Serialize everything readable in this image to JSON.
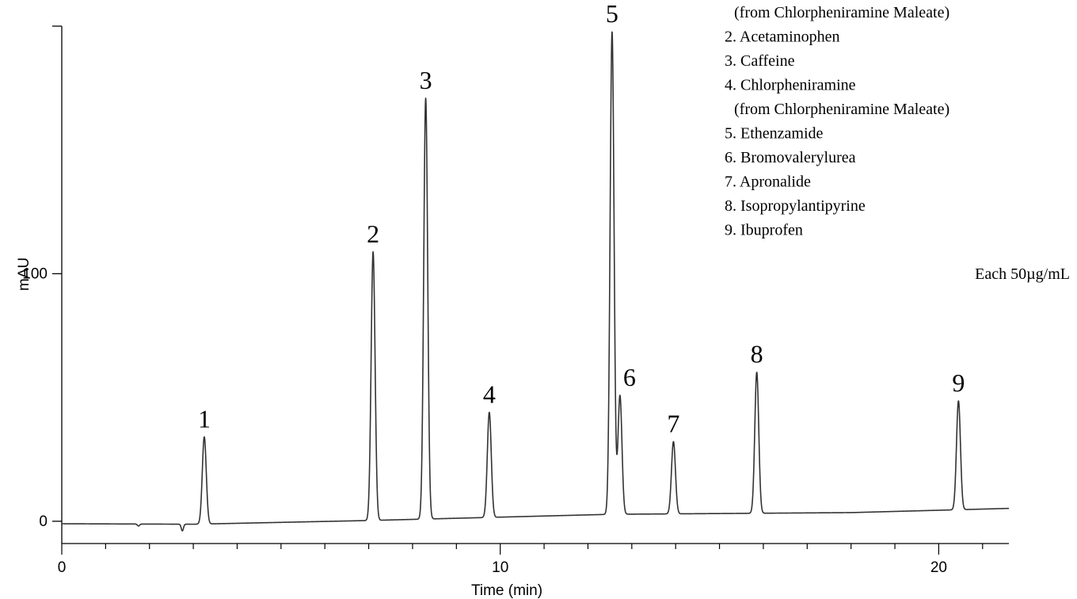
{
  "chart_data": {
    "type": "line",
    "title": "",
    "xlabel": "Time (min)",
    "ylabel": "mAU",
    "xlim": [
      0,
      21.6
    ],
    "ylim": [
      -9,
      200
    ],
    "x_ticks": [
      0,
      10,
      20
    ],
    "y_ticks": [
      0,
      100
    ],
    "x_tick_labels": [
      "0",
      "10",
      "20"
    ],
    "y_tick_labels": [
      "0",
      "100"
    ],
    "x_minor_step": 1,
    "grid": false,
    "baseline": [
      [
        0,
        -1
      ],
      [
        3,
        -1.2
      ],
      [
        7,
        0.3
      ],
      [
        12.5,
        2.8
      ],
      [
        18,
        3.5
      ],
      [
        21.6,
        5.2
      ]
    ],
    "disturbances": [
      {
        "time": 1.75,
        "depth": -0.8
      },
      {
        "time": 2.75,
        "depth": -2.7
      }
    ],
    "series": [
      {
        "values": [
          {
            "id": "1",
            "time": 3.25,
            "height": 35.2
          },
          {
            "id": "2",
            "time": 7.1,
            "height": 108.5
          },
          {
            "id": "3",
            "time": 8.3,
            "height": 170
          },
          {
            "id": "4",
            "time": 9.75,
            "height": 42.5
          },
          {
            "id": "5",
            "time": 12.55,
            "height": 195
          },
          {
            "id": "6",
            "time": 12.73,
            "height": 48
          },
          {
            "id": "7",
            "time": 13.95,
            "height": 29.2
          },
          {
            "id": "8",
            "time": 15.85,
            "height": 57
          },
          {
            "id": "9",
            "time": 20.45,
            "height": 44
          }
        ]
      }
    ],
    "peak_labels": [
      "1",
      "2",
      "3",
      "4",
      "5",
      "6",
      "7",
      "8",
      "9"
    ],
    "legend_lines": [
      "(from Chlorpheniramine Maleate)",
      "2. Acetaminophen",
      "3. Caffeine",
      "4. Chlorpheniramine",
      "(from Chlorpheniramine Maleate)",
      "5. Ethenzamide",
      "6. Bromovalerylurea",
      "7. Apronalide",
      "8. Isopropylantipyrine",
      "9. Ibuprofen"
    ],
    "concentration_note": "Each 50µg/mL",
    "line_color": "#333333"
  }
}
